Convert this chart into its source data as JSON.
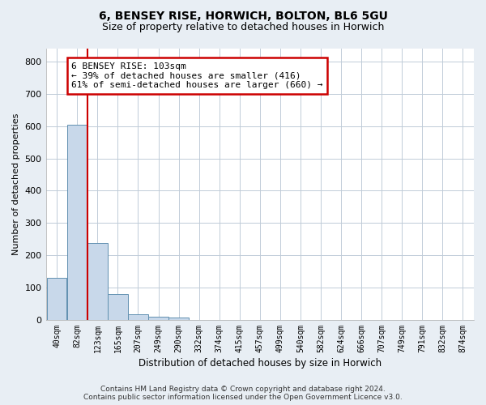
{
  "title_line1": "6, BENSEY RISE, HORWICH, BOLTON, BL6 5GU",
  "title_line2": "Size of property relative to detached houses in Horwich",
  "xlabel": "Distribution of detached houses by size in Horwich",
  "ylabel": "Number of detached properties",
  "bar_color": "#c8d8ea",
  "bar_edge_color": "#6090b0",
  "bin_labels": [
    "40sqm",
    "82sqm",
    "123sqm",
    "165sqm",
    "207sqm",
    "249sqm",
    "290sqm",
    "332sqm",
    "374sqm",
    "415sqm",
    "457sqm",
    "499sqm",
    "540sqm",
    "582sqm",
    "624sqm",
    "666sqm",
    "707sqm",
    "749sqm",
    "791sqm",
    "832sqm",
    "874sqm"
  ],
  "bar_heights": [
    130,
    605,
    237,
    80,
    18,
    10,
    8,
    0,
    0,
    0,
    0,
    0,
    0,
    0,
    0,
    0,
    0,
    0,
    0,
    0,
    0
  ],
  "ylim": [
    0,
    840
  ],
  "yticks": [
    0,
    100,
    200,
    300,
    400,
    500,
    600,
    700,
    800
  ],
  "vline_x": 1.5,
  "vline_color": "#cc0000",
  "annotation_text": "6 BENSEY RISE: 103sqm\n← 39% of detached houses are smaller (416)\n61% of semi-detached houses are larger (660) →",
  "annotation_box_color": "#ffffff",
  "annotation_box_edge_color": "#cc0000",
  "footer_line1": "Contains HM Land Registry data © Crown copyright and database right 2024.",
  "footer_line2": "Contains public sector information licensed under the Open Government Licence v3.0.",
  "background_color": "#e8eef4",
  "plot_bg_color": "#ffffff",
  "grid_color": "#c0ccd8"
}
